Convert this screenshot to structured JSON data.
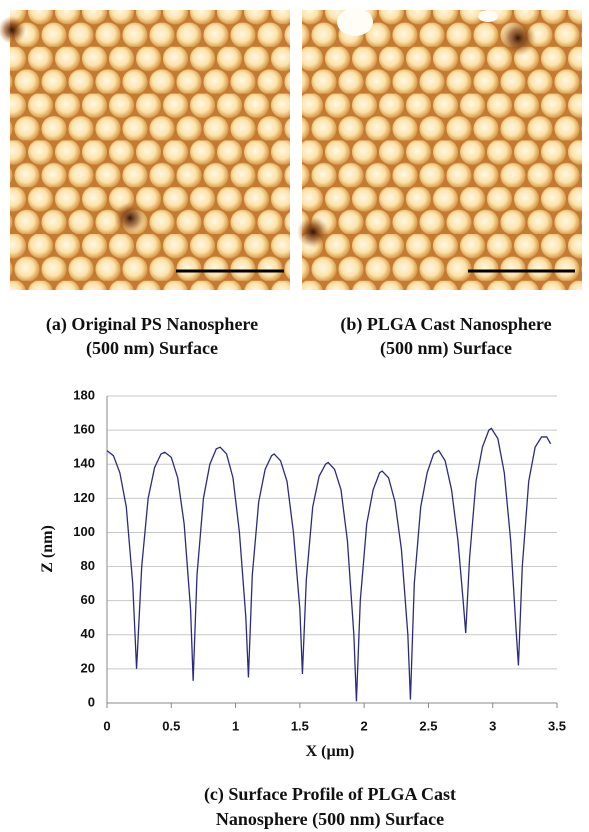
{
  "panels": [
    {
      "caption": [
        "(a) Original PS Nanosphere",
        "(500 nm) Surface"
      ]
    },
    {
      "caption": [
        "(b) PLGA Cast Nanosphere",
        "(500 nm) Surface"
      ]
    }
  ],
  "chart_data": {
    "type": "line",
    "caption": [
      "(c) Surface Profile of PLGA Cast",
      "Nanosphere (500 nm) Surface"
    ],
    "x_label": "X (µm)",
    "y_label": "Z (nm)",
    "xlim": [
      0,
      3.5
    ],
    "xticks": [
      0,
      0.5,
      1,
      1.5,
      2,
      2.5,
      3,
      3.5
    ],
    "ylim": [
      0,
      180
    ],
    "yticks": [
      0,
      20,
      40,
      60,
      80,
      100,
      120,
      140,
      160,
      180
    ],
    "grid": true,
    "series": [
      {
        "color": "#2b2b80",
        "x": [
          0,
          0.05,
          0.1,
          0.15,
          0.2,
          0.23,
          0.27,
          0.32,
          0.37,
          0.42,
          0.45,
          0.5,
          0.55,
          0.6,
          0.65,
          0.67,
          0.7,
          0.75,
          0.8,
          0.85,
          0.88,
          0.93,
          0.98,
          1.03,
          1.08,
          1.1,
          1.13,
          1.18,
          1.23,
          1.28,
          1.3,
          1.35,
          1.4,
          1.45,
          1.5,
          1.52,
          1.55,
          1.6,
          1.65,
          1.7,
          1.72,
          1.77,
          1.82,
          1.87,
          1.92,
          1.94,
          1.97,
          2.02,
          2.07,
          2.12,
          2.14,
          2.19,
          2.24,
          2.29,
          2.34,
          2.36,
          2.39,
          2.44,
          2.49,
          2.54,
          2.58,
          2.63,
          2.68,
          2.73,
          2.77,
          2.79,
          2.82,
          2.87,
          2.92,
          2.97,
          2.99,
          3.04,
          3.09,
          3.14,
          3.18,
          3.2,
          3.23,
          3.28,
          3.33,
          3.38,
          3.42,
          3.45
        ],
        "values": [
          148,
          145,
          135,
          115,
          70,
          20,
          80,
          120,
          138,
          146,
          147,
          144,
          132,
          105,
          55,
          13,
          75,
          120,
          140,
          149,
          150,
          146,
          132,
          100,
          50,
          15,
          75,
          118,
          137,
          145,
          146,
          142,
          130,
          100,
          55,
          17,
          72,
          115,
          133,
          140,
          141,
          137,
          125,
          95,
          40,
          1,
          60,
          105,
          125,
          135,
          136,
          132,
          118,
          90,
          40,
          2,
          70,
          115,
          135,
          146,
          148,
          142,
          125,
          95,
          60,
          41,
          85,
          130,
          150,
          160,
          161,
          155,
          135,
          95,
          45,
          22,
          80,
          130,
          150,
          156,
          156,
          152
        ]
      }
    ]
  }
}
